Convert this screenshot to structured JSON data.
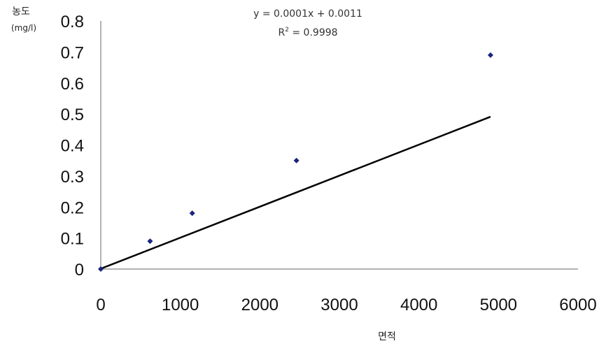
{
  "chart_data": {
    "type": "scatter",
    "xlabel": "면적",
    "ylabel": "농도",
    "ylabel_unit": "(mg/l)",
    "xlim": [
      0,
      6000
    ],
    "ylim": [
      0,
      0.8
    ],
    "xticks": [
      "0",
      "1000",
      "2000",
      "3000",
      "4000",
      "5000",
      "6000"
    ],
    "yticks": [
      "0",
      "0.1",
      "0.2",
      "0.3",
      "0.4",
      "0.5",
      "0.6",
      "0.7",
      "0.8"
    ],
    "grid": false,
    "legend": "none",
    "series": [
      {
        "x": [
          0,
          620,
          1150,
          2460,
          4900
        ],
        "y": [
          0.0,
          0.09,
          0.18,
          0.35,
          0.69
        ],
        "marker_color": "#1a237e"
      }
    ],
    "trendline": {
      "slope": 0.0001,
      "intercept": 0.0011,
      "x_range": [
        0,
        4900
      ],
      "color": "#000000",
      "equation": "y = 0.0001x + 0.0011",
      "r_squared_prefix": "R",
      "r_squared_sup": "2",
      "r_squared_value": " = 0.9998"
    }
  }
}
